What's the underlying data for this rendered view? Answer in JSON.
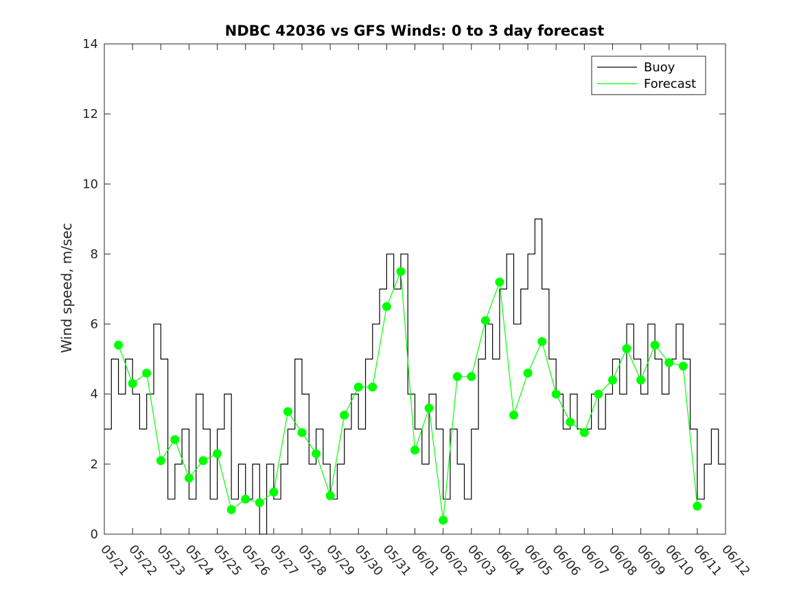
{
  "chart_data": {
    "type": "line",
    "title": "NDBC 42036 vs GFS Winds: 0 to 3 day forecast",
    "xlabel": "",
    "ylabel": "Wind speed, m/sec",
    "ylim": [
      0,
      14
    ],
    "yticks": [
      0,
      2,
      4,
      6,
      8,
      10,
      12,
      14
    ],
    "xrange_days": [
      "05/21",
      "06/12"
    ],
    "x_tick_labels": [
      "05/21",
      "05/22",
      "05/23",
      "05/24",
      "05/25",
      "05/26",
      "05/27",
      "05/28",
      "05/29",
      "05/30",
      "05/31",
      "06/01",
      "06/02",
      "06/03",
      "06/04",
      "06/05",
      "06/06",
      "06/07",
      "06/08",
      "06/09",
      "06/10",
      "06/11",
      "06/12"
    ],
    "legend": {
      "position": "top-right",
      "entries": [
        "Buoy",
        "Forecast"
      ]
    },
    "grid": false,
    "colors": {
      "buoy": "#000000",
      "forecast": "#00ff00",
      "axis": "#262626"
    },
    "series": [
      {
        "name": "Buoy",
        "color": "#000000",
        "points": [
          [
            "05/21",
            3
          ],
          [
            "05/21 06",
            5
          ],
          [
            "05/21 12",
            4
          ],
          [
            "05/21 18",
            5
          ],
          [
            "05/22",
            4
          ],
          [
            "05/22 06",
            3
          ],
          [
            "05/22 12",
            4
          ],
          [
            "05/22 18",
            6
          ],
          [
            "05/23",
            5
          ],
          [
            "05/23 06",
            1
          ],
          [
            "05/23 12",
            2
          ],
          [
            "05/23 18",
            3
          ],
          [
            "05/24",
            1
          ],
          [
            "05/24 06",
            4
          ],
          [
            "05/24 12",
            3
          ],
          [
            "05/24 18",
            1
          ],
          [
            "05/25",
            3
          ],
          [
            "05/25 06",
            4
          ],
          [
            "05/25 12",
            1
          ],
          [
            "05/25 18",
            2
          ],
          [
            "05/26",
            1
          ],
          [
            "05/26 06",
            2
          ],
          [
            "05/26 12",
            0
          ],
          [
            "05/26 18",
            2
          ],
          [
            "05/27",
            1
          ],
          [
            "05/27 06",
            2
          ],
          [
            "05/27 12",
            3
          ],
          [
            "05/27 18",
            5
          ],
          [
            "05/28",
            4
          ],
          [
            "05/28 06",
            2
          ],
          [
            "05/28 12",
            3
          ],
          [
            "05/28 18",
            2
          ],
          [
            "05/29",
            1
          ],
          [
            "05/29 06",
            2
          ],
          [
            "05/29 12",
            3
          ],
          [
            "05/29 18",
            4
          ],
          [
            "05/30",
            3
          ],
          [
            "05/30 06",
            5
          ],
          [
            "05/30 12",
            6
          ],
          [
            "05/30 18",
            7
          ],
          [
            "05/31",
            8
          ],
          [
            "05/31 06",
            7
          ],
          [
            "05/31 12",
            8
          ],
          [
            "05/31 18",
            4
          ],
          [
            "06/01",
            3
          ],
          [
            "06/01 06",
            2
          ],
          [
            "06/01 12",
            4
          ],
          [
            "06/01 18",
            3
          ],
          [
            "06/02",
            1
          ],
          [
            "06/02 06",
            3
          ],
          [
            "06/02 12",
            2
          ],
          [
            "06/02 18",
            1
          ],
          [
            "06/03",
            3
          ],
          [
            "06/03 06",
            5
          ],
          [
            "06/03 12",
            6
          ],
          [
            "06/03 18",
            5
          ],
          [
            "06/04",
            7
          ],
          [
            "06/04 06",
            8
          ],
          [
            "06/04 12",
            6
          ],
          [
            "06/04 18",
            7
          ],
          [
            "06/05",
            8
          ],
          [
            "06/05 06",
            9
          ],
          [
            "06/05 12",
            7
          ],
          [
            "06/05 18",
            5
          ],
          [
            "06/06",
            4
          ],
          [
            "06/06 06",
            3
          ],
          [
            "06/06 12",
            4
          ],
          [
            "06/06 18",
            3
          ],
          [
            "06/07",
            3
          ],
          [
            "06/07 06",
            4
          ],
          [
            "06/07 12",
            3
          ],
          [
            "06/07 18",
            4
          ],
          [
            "06/08",
            5
          ],
          [
            "06/08 06",
            4
          ],
          [
            "06/08 12",
            6
          ],
          [
            "06/08 18",
            5
          ],
          [
            "06/09",
            4
          ],
          [
            "06/09 06",
            6
          ],
          [
            "06/09 12",
            5
          ],
          [
            "06/09 18",
            4
          ],
          [
            "06/10",
            5
          ],
          [
            "06/10 06",
            6
          ],
          [
            "06/10 12",
            5
          ],
          [
            "06/10 18",
            3
          ],
          [
            "06/11",
            1
          ],
          [
            "06/11 06",
            2
          ],
          [
            "06/11 12",
            3
          ],
          [
            "06/11 18",
            2
          ],
          [
            "06/12",
            2
          ]
        ]
      },
      {
        "name": "Forecast",
        "color": "#00ff00",
        "markers": [
          [
            "05/21 12",
            5.4
          ],
          [
            "05/22",
            4.3
          ],
          [
            "05/22 12",
            4.6
          ],
          [
            "05/23",
            2.1
          ],
          [
            "05/23 12",
            2.7
          ],
          [
            "05/24",
            1.6
          ],
          [
            "05/24 12",
            2.1
          ],
          [
            "05/25",
            2.3
          ],
          [
            "05/25 12",
            0.7
          ],
          [
            "05/26",
            1.0
          ],
          [
            "05/26 12",
            0.9
          ],
          [
            "05/27",
            1.2
          ],
          [
            "05/27 12",
            3.5
          ],
          [
            "05/28",
            2.9
          ],
          [
            "05/28 12",
            2.3
          ],
          [
            "05/29",
            1.1
          ],
          [
            "05/29 12",
            3.4
          ],
          [
            "05/30",
            4.2
          ],
          [
            "05/30 12",
            4.2
          ],
          [
            "05/31",
            6.5
          ],
          [
            "05/31 12",
            7.5
          ],
          [
            "06/01",
            2.4
          ],
          [
            "06/01 12",
            3.6
          ],
          [
            "06/02",
            0.4
          ],
          [
            "06/02 12",
            4.5
          ],
          [
            "06/03",
            4.5
          ],
          [
            "06/03 12",
            6.1
          ],
          [
            "06/04",
            7.2
          ],
          [
            "06/04 12",
            3.4
          ],
          [
            "06/05",
            4.6
          ],
          [
            "06/05 12",
            5.5
          ],
          [
            "06/06",
            4.0
          ],
          [
            "06/06 12",
            3.2
          ],
          [
            "06/07",
            2.9
          ],
          [
            "06/07 12",
            4.0
          ],
          [
            "06/08",
            4.4
          ],
          [
            "06/08 12",
            5.3
          ],
          [
            "06/09",
            4.4
          ],
          [
            "06/09 12",
            5.4
          ],
          [
            "06/10",
            4.9
          ],
          [
            "06/10 12",
            4.8
          ],
          [
            "06/11",
            0.8
          ]
        ]
      }
    ]
  }
}
